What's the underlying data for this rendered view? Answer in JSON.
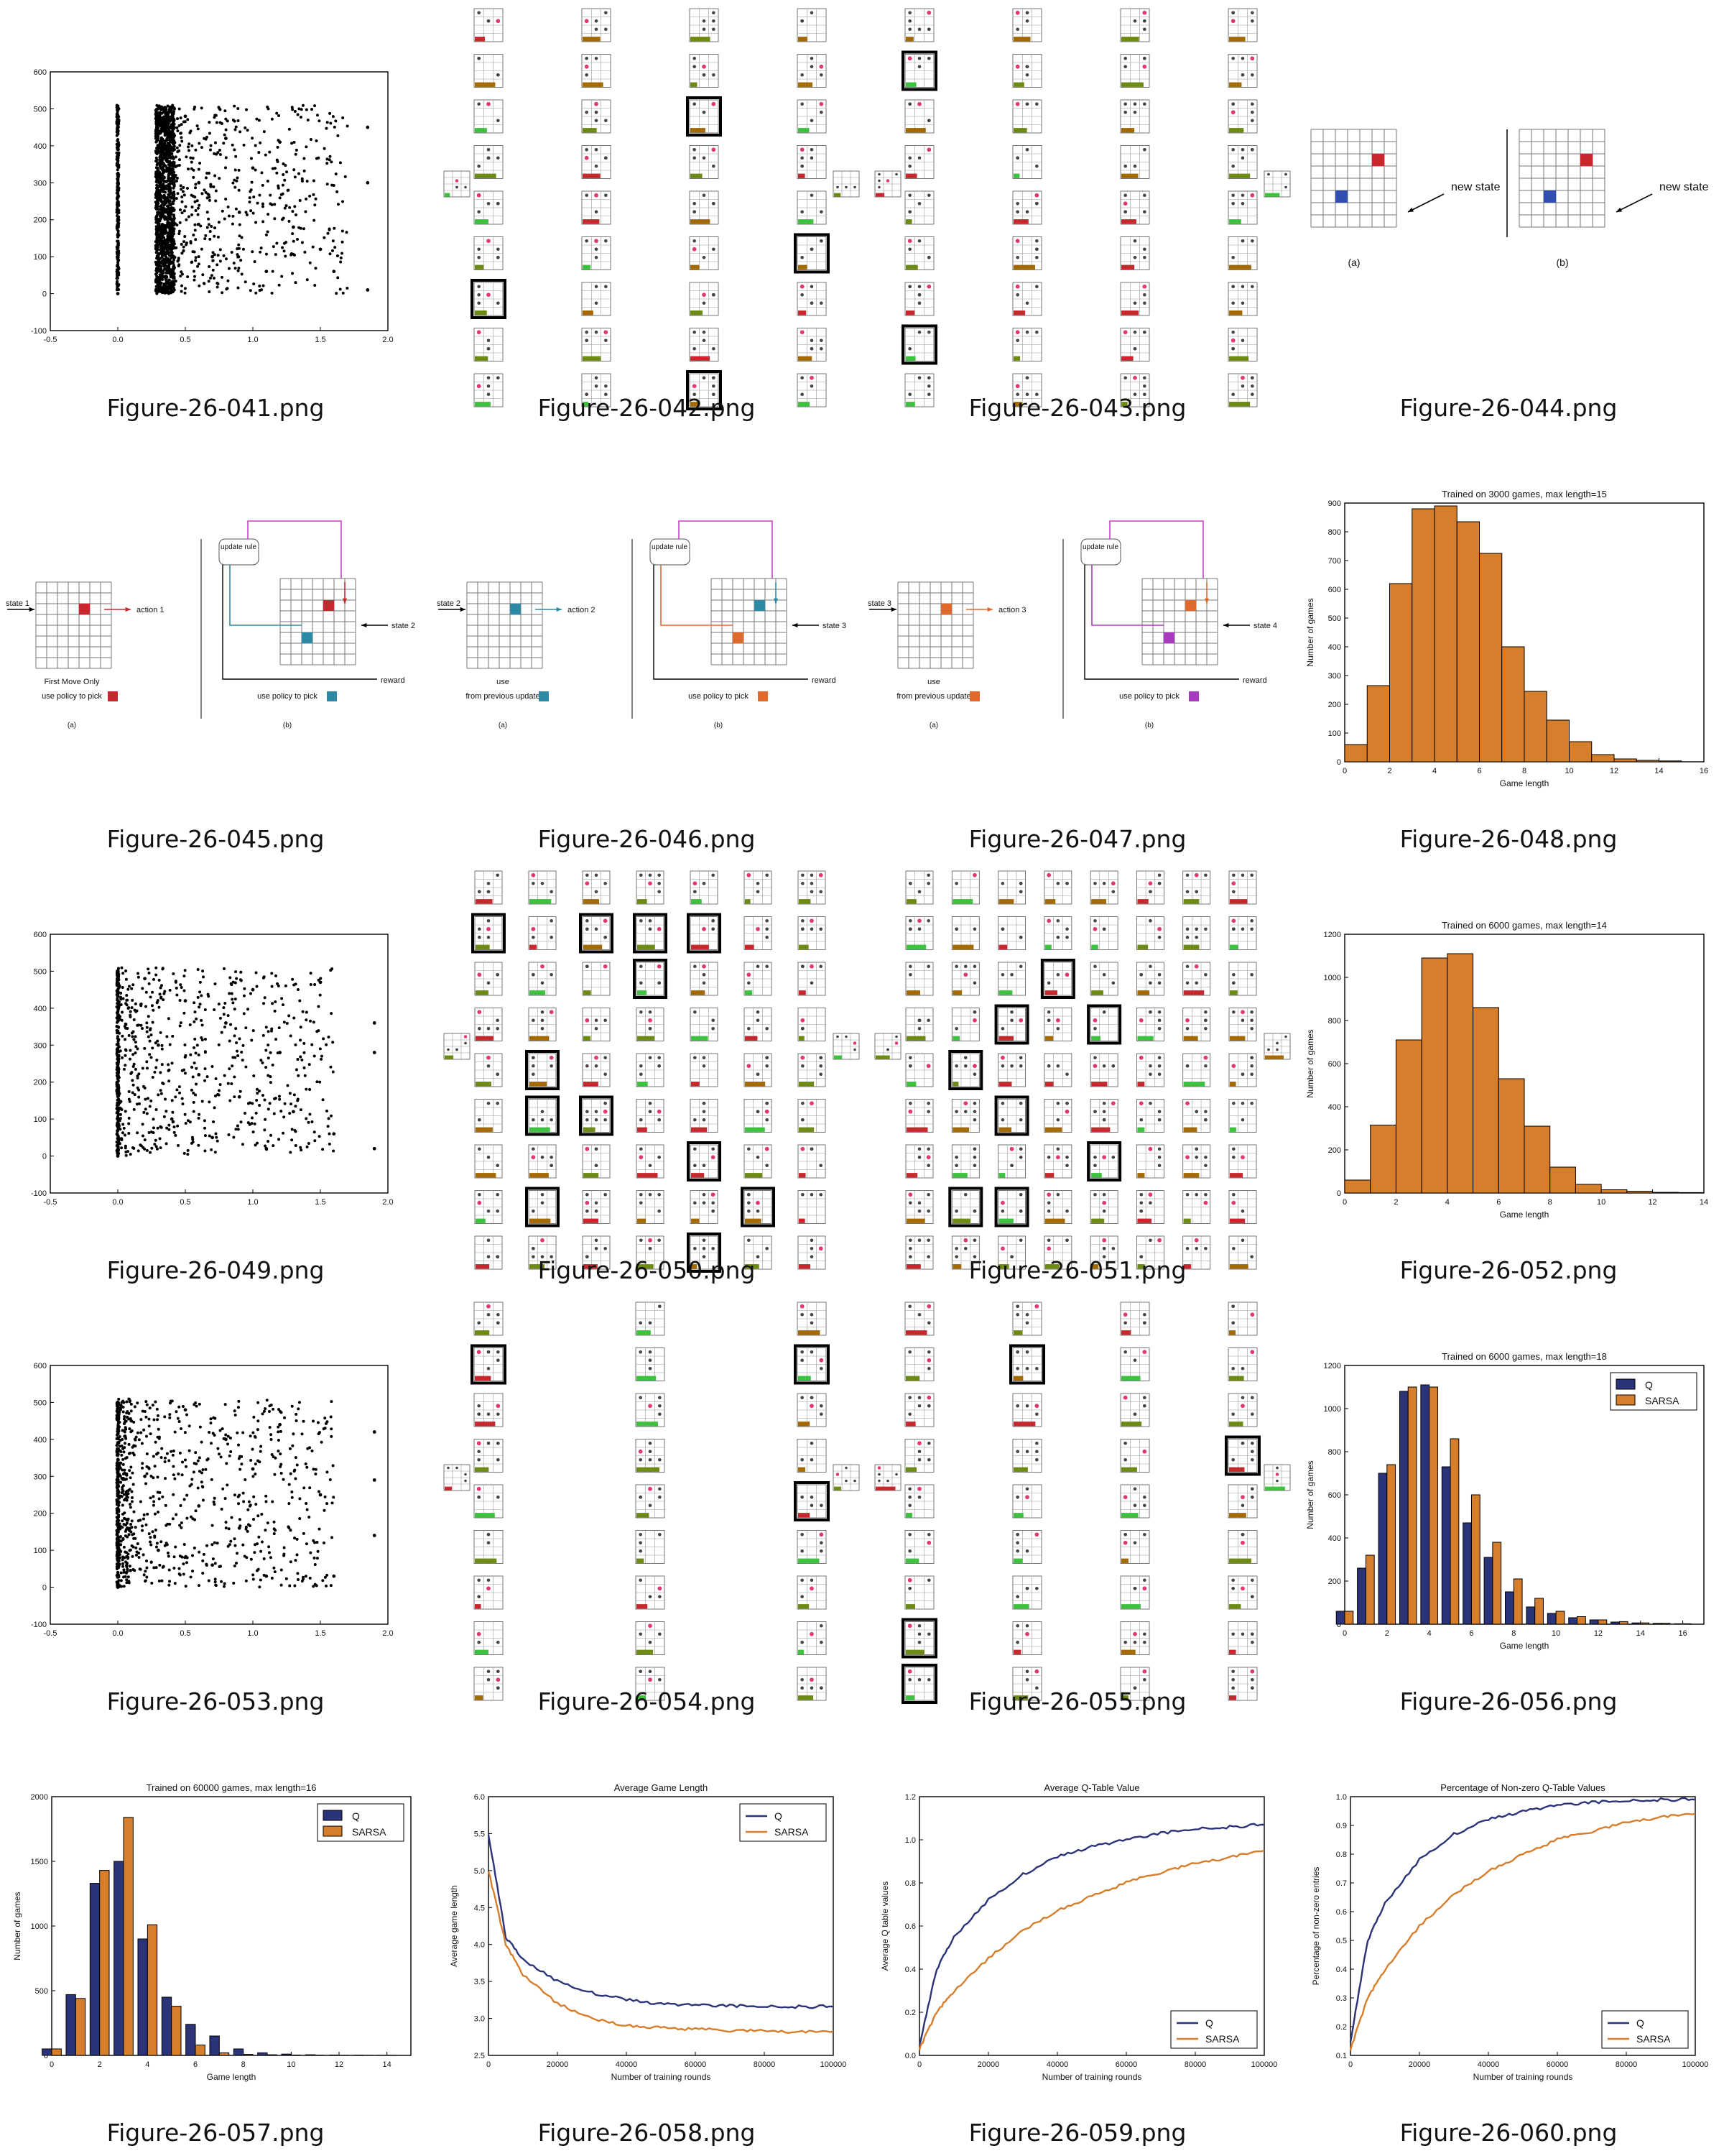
{
  "colors": {
    "orange": "#d67e2c",
    "navy": "#2b3479",
    "black": "#000000",
    "red": "#c7282e",
    "blue": "#2e4fae",
    "teal": "#2c8aa5",
    "purple": "#a83cbf",
    "green": "#3c8f3c",
    "magenta": "#c742c7"
  },
  "cells": [
    {
      "file": "Figure-26-041.png",
      "kind": "scatter"
    },
    {
      "file": "Figure-26-042.png",
      "kind": "grid-of-boards"
    },
    {
      "file": "Figure-26-043.png",
      "kind": "grid-of-boards"
    },
    {
      "file": "Figure-26-044.png",
      "kind": "state-diagram",
      "labels": [
        "new state",
        "(a)",
        "new state",
        "(b)"
      ]
    },
    {
      "file": "Figure-26-045.png",
      "kind": "diagram",
      "labels": [
        "state 1",
        "action 1",
        "First Move Only",
        "use policy to pick",
        "(a)",
        "update rule",
        "state 2",
        "reward",
        "use policy to pick",
        "(b)"
      ]
    },
    {
      "file": "Figure-26-046.png",
      "kind": "diagram",
      "labels": [
        "state 2",
        "action 2",
        "use",
        "from previous update",
        "(a)",
        "update rule",
        "state 3",
        "reward",
        "use policy to pick",
        "(b)"
      ]
    },
    {
      "file": "Figure-26-047.png",
      "kind": "diagram",
      "labels": [
        "state 3",
        "action 3",
        "use",
        "from previous update",
        "(a)",
        "update rule",
        "state 4",
        "reward",
        "use policy to pick",
        "(b)"
      ]
    },
    {
      "file": "Figure-26-048.png",
      "kind": "histogram"
    },
    {
      "file": "Figure-26-049.png",
      "kind": "scatter"
    },
    {
      "file": "Figure-26-050.png",
      "kind": "grid-of-boards"
    },
    {
      "file": "Figure-26-051.png",
      "kind": "grid-of-boards"
    },
    {
      "file": "Figure-26-052.png",
      "kind": "histogram"
    },
    {
      "file": "Figure-26-053.png",
      "kind": "scatter"
    },
    {
      "file": "Figure-26-054.png",
      "kind": "grid-of-boards"
    },
    {
      "file": "Figure-26-055.png",
      "kind": "grid-of-boards"
    },
    {
      "file": "Figure-26-056.png",
      "kind": "bar-two-series"
    },
    {
      "file": "Figure-26-057.png",
      "kind": "bar-two-series"
    },
    {
      "file": "Figure-26-058.png",
      "kind": "line"
    },
    {
      "file": "Figure-26-059.png",
      "kind": "line"
    },
    {
      "file": "Figure-26-060.png",
      "kind": "line"
    }
  ],
  "chart_data": [
    {
      "id": "fig041",
      "type": "scatter",
      "xlim": [
        -0.5,
        2.0
      ],
      "ylim": [
        -100,
        600
      ],
      "xticks": [
        "-0.5",
        "0.0",
        "0.5",
        "1.0",
        "1.5",
        "2.0"
      ],
      "yticks": [
        "-100",
        "0",
        "100",
        "200",
        "300",
        "400",
        "500",
        "600"
      ],
      "points": [
        [
          0.0,
          0
        ],
        [
          0.0,
          100
        ],
        [
          0.0,
          200
        ],
        [
          0.0,
          300
        ],
        [
          0.0,
          400
        ],
        [
          0.0,
          500
        ],
        [
          0.3,
          40
        ],
        [
          0.32,
          150
        ],
        [
          0.35,
          250
        ],
        [
          0.38,
          350
        ],
        [
          0.4,
          450
        ],
        [
          0.33,
          500
        ],
        [
          0.36,
          10
        ],
        [
          0.5,
          480
        ],
        [
          0.6,
          300
        ],
        [
          0.7,
          100
        ],
        [
          0.8,
          420
        ],
        [
          0.9,
          220
        ],
        [
          1.0,
          340
        ],
        [
          1.1,
          60
        ],
        [
          1.2,
          410
        ],
        [
          1.3,
          180
        ],
        [
          1.5,
          120
        ],
        [
          1.6,
          60
        ],
        [
          1.85,
          300
        ],
        [
          1.85,
          450
        ],
        [
          1.85,
          10
        ]
      ]
    },
    {
      "id": "fig048",
      "type": "bar",
      "title": "Trained on 3000 games, max length=15",
      "xlabel": "Game length",
      "ylabel": "Number of games",
      "xlim": [
        0,
        16
      ],
      "ylim": [
        0,
        900
      ],
      "xticks": [
        "0",
        "2",
        "4",
        "6",
        "8",
        "10",
        "12",
        "14",
        "16"
      ],
      "yticks": [
        "0",
        "100",
        "200",
        "300",
        "400",
        "500",
        "600",
        "700",
        "800",
        "900"
      ],
      "categories": [
        0,
        1,
        2,
        3,
        4,
        5,
        6,
        7,
        8,
        9,
        10,
        11,
        12,
        13,
        14
      ],
      "values": [
        60,
        265,
        620,
        880,
        890,
        835,
        725,
        400,
        245,
        145,
        70,
        25,
        10,
        5,
        3
      ]
    },
    {
      "id": "fig049",
      "type": "scatter",
      "xlim": [
        -0.5,
        2.0
      ],
      "ylim": [
        -100,
        600
      ],
      "xticks": [
        "-0.5",
        "0.0",
        "0.5",
        "1.0",
        "1.5",
        "2.0"
      ],
      "yticks": [
        "-100",
        "0",
        "100",
        "200",
        "300",
        "400",
        "500",
        "600"
      ],
      "points": [
        [
          0.0,
          0
        ],
        [
          0.0,
          250
        ],
        [
          0.0,
          500
        ],
        [
          0.2,
          480
        ],
        [
          0.3,
          300
        ],
        [
          0.4,
          100
        ],
        [
          0.5,
          420
        ],
        [
          0.6,
          220
        ],
        [
          0.7,
          50
        ],
        [
          0.8,
          360
        ],
        [
          0.9,
          160
        ],
        [
          1.0,
          450
        ],
        [
          1.1,
          20
        ],
        [
          1.2,
          280
        ],
        [
          1.3,
          120
        ],
        [
          1.5,
          470
        ],
        [
          1.6,
          60
        ],
        [
          1.9,
          360
        ],
        [
          1.9,
          280
        ],
        [
          1.9,
          20
        ]
      ]
    },
    {
      "id": "fig052",
      "type": "bar",
      "title": "Trained on 6000 games, max length=14",
      "xlabel": "Game length",
      "ylabel": "Number of games",
      "xlim": [
        0,
        14
      ],
      "ylim": [
        0,
        1200
      ],
      "xticks": [
        "0",
        "2",
        "4",
        "6",
        "8",
        "10",
        "12",
        "14"
      ],
      "yticks": [
        "0",
        "200",
        "400",
        "600",
        "800",
        "1000",
        "1200"
      ],
      "categories": [
        0,
        1,
        2,
        3,
        4,
        5,
        6,
        7,
        8,
        9,
        10,
        11,
        12,
        13
      ],
      "values": [
        60,
        315,
        710,
        1090,
        1110,
        860,
        530,
        310,
        120,
        40,
        15,
        8,
        3,
        2
      ]
    },
    {
      "id": "fig053",
      "type": "scatter",
      "xlim": [
        -0.5,
        2.0
      ],
      "ylim": [
        -100,
        600
      ],
      "xticks": [
        "-0.5",
        "0.0",
        "0.5",
        "1.0",
        "1.5",
        "2.0"
      ],
      "yticks": [
        "-100",
        "0",
        "100",
        "200",
        "300",
        "400",
        "500",
        "600"
      ],
      "points": [
        [
          0.0,
          0
        ],
        [
          0.0,
          250
        ],
        [
          0.0,
          500
        ],
        [
          0.1,
          450
        ],
        [
          0.2,
          300
        ],
        [
          0.3,
          100
        ],
        [
          0.5,
          480
        ],
        [
          0.6,
          220
        ],
        [
          0.7,
          60
        ],
        [
          0.8,
          400
        ],
        [
          0.9,
          160
        ],
        [
          1.0,
          320
        ],
        [
          1.1,
          30
        ],
        [
          1.2,
          440
        ],
        [
          1.5,
          250
        ],
        [
          1.6,
          30
        ],
        [
          1.9,
          420
        ],
        [
          1.9,
          290
        ],
        [
          1.9,
          140
        ]
      ]
    },
    {
      "id": "fig056",
      "type": "bar",
      "title": "Trained on 6000 games, max length=18",
      "xlabel": "Game length",
      "ylabel": "Number of games",
      "xlim": [
        0,
        17
      ],
      "ylim": [
        0,
        1200
      ],
      "xticks": [
        "0",
        "2",
        "4",
        "6",
        "8",
        "10",
        "12",
        "14",
        "16"
      ],
      "yticks": [
        "0",
        "200",
        "400",
        "600",
        "800",
        "1000",
        "1200"
      ],
      "categories": [
        0,
        1,
        2,
        3,
        4,
        5,
        6,
        7,
        8,
        9,
        10,
        11,
        12,
        13,
        14,
        15,
        16
      ],
      "series": [
        {
          "name": "Q",
          "values": [
            60,
            260,
            700,
            1080,
            1110,
            730,
            470,
            310,
            150,
            80,
            50,
            30,
            20,
            10,
            6,
            4,
            2
          ]
        },
        {
          "name": "SARSA",
          "values": [
            60,
            320,
            740,
            1100,
            1100,
            860,
            600,
            380,
            210,
            120,
            60,
            35,
            20,
            12,
            6,
            4,
            2
          ]
        }
      ]
    },
    {
      "id": "fig057",
      "type": "bar",
      "title": "Trained on 60000 games, max length=16",
      "xlabel": "Game length",
      "ylabel": "Number of games",
      "xlim": [
        0,
        15
      ],
      "ylim": [
        0,
        2000
      ],
      "xticks": [
        "0",
        "2",
        "4",
        "6",
        "8",
        "10",
        "12",
        "14"
      ],
      "yticks": [
        "0",
        "500",
        "1000",
        "1500",
        "2000"
      ],
      "categories": [
        0,
        1,
        2,
        3,
        4,
        5,
        6,
        7,
        8,
        9,
        10,
        11,
        12,
        13,
        14
      ],
      "series": [
        {
          "name": "Q",
          "values": [
            50,
            470,
            1330,
            1500,
            900,
            450,
            240,
            150,
            50,
            20,
            10,
            5,
            3,
            2,
            1
          ]
        },
        {
          "name": "SARSA",
          "values": [
            50,
            440,
            1430,
            1840,
            1010,
            380,
            80,
            20,
            8,
            5,
            3,
            2,
            1,
            1,
            1
          ]
        }
      ]
    },
    {
      "id": "fig058",
      "type": "line",
      "title": "Average Game Length",
      "xlabel": "Number of training rounds",
      "ylabel": "Average game length",
      "xlim": [
        0,
        100000
      ],
      "ylim": [
        2.5,
        6.0
      ],
      "xticks": [
        "0",
        "20000",
        "40000",
        "60000",
        "80000",
        "100000"
      ],
      "yticks": [
        "2.5",
        "3.0",
        "3.5",
        "4.0",
        "4.5",
        "5.0",
        "5.5",
        "6.0"
      ],
      "x": [
        0,
        5000,
        10000,
        20000,
        30000,
        40000,
        50000,
        60000,
        70000,
        80000,
        90000,
        100000
      ],
      "series": [
        {
          "name": "Q",
          "values": [
            5.5,
            4.1,
            3.8,
            3.5,
            3.35,
            3.25,
            3.2,
            3.18,
            3.17,
            3.16,
            3.16,
            3.16
          ]
        },
        {
          "name": "SARSA",
          "values": [
            5.0,
            4.0,
            3.6,
            3.2,
            3.0,
            2.9,
            2.88,
            2.85,
            2.84,
            2.83,
            2.82,
            2.82
          ]
        }
      ]
    },
    {
      "id": "fig059",
      "type": "line",
      "title": "Average Q-Table Value",
      "xlabel": "Number of training rounds",
      "ylabel": "Average Q table values",
      "xlim": [
        0,
        100000
      ],
      "ylim": [
        0.0,
        1.2
      ],
      "xticks": [
        "0",
        "20000",
        "40000",
        "60000",
        "80000",
        "100000"
      ],
      "yticks": [
        "0.0",
        "0.2",
        "0.4",
        "0.6",
        "0.8",
        "1.0",
        "1.2"
      ],
      "x": [
        0,
        5000,
        10000,
        20000,
        30000,
        40000,
        50000,
        60000,
        70000,
        80000,
        90000,
        100000
      ],
      "series": [
        {
          "name": "Q",
          "values": [
            0.05,
            0.4,
            0.55,
            0.72,
            0.84,
            0.92,
            0.97,
            1.0,
            1.03,
            1.05,
            1.06,
            1.07
          ]
        },
        {
          "name": "SARSA",
          "values": [
            0.03,
            0.2,
            0.3,
            0.45,
            0.58,
            0.67,
            0.74,
            0.8,
            0.85,
            0.89,
            0.92,
            0.95
          ]
        }
      ]
    },
    {
      "id": "fig060",
      "type": "line",
      "title": "Percentage of Non-zero Q-Table Values",
      "xlabel": "Number of training rounds",
      "ylabel": "Percentage of non-zero entries",
      "xlim": [
        0,
        100000
      ],
      "ylim": [
        0.1,
        1.0
      ],
      "xticks": [
        "0",
        "20000",
        "40000",
        "60000",
        "80000",
        "100000"
      ],
      "yticks": [
        "0.1",
        "0.2",
        "0.3",
        "0.4",
        "0.5",
        "0.6",
        "0.7",
        "0.8",
        "0.9",
        "1.0"
      ],
      "x": [
        0,
        5000,
        10000,
        20000,
        30000,
        40000,
        50000,
        60000,
        70000,
        80000,
        90000,
        100000
      ],
      "series": [
        {
          "name": "Q",
          "values": [
            0.15,
            0.5,
            0.63,
            0.78,
            0.87,
            0.92,
            0.95,
            0.97,
            0.98,
            0.985,
            0.99,
            0.99
          ]
        },
        {
          "name": "SARSA",
          "values": [
            0.12,
            0.3,
            0.4,
            0.55,
            0.66,
            0.74,
            0.8,
            0.85,
            0.88,
            0.91,
            0.93,
            0.94
          ]
        }
      ]
    }
  ]
}
